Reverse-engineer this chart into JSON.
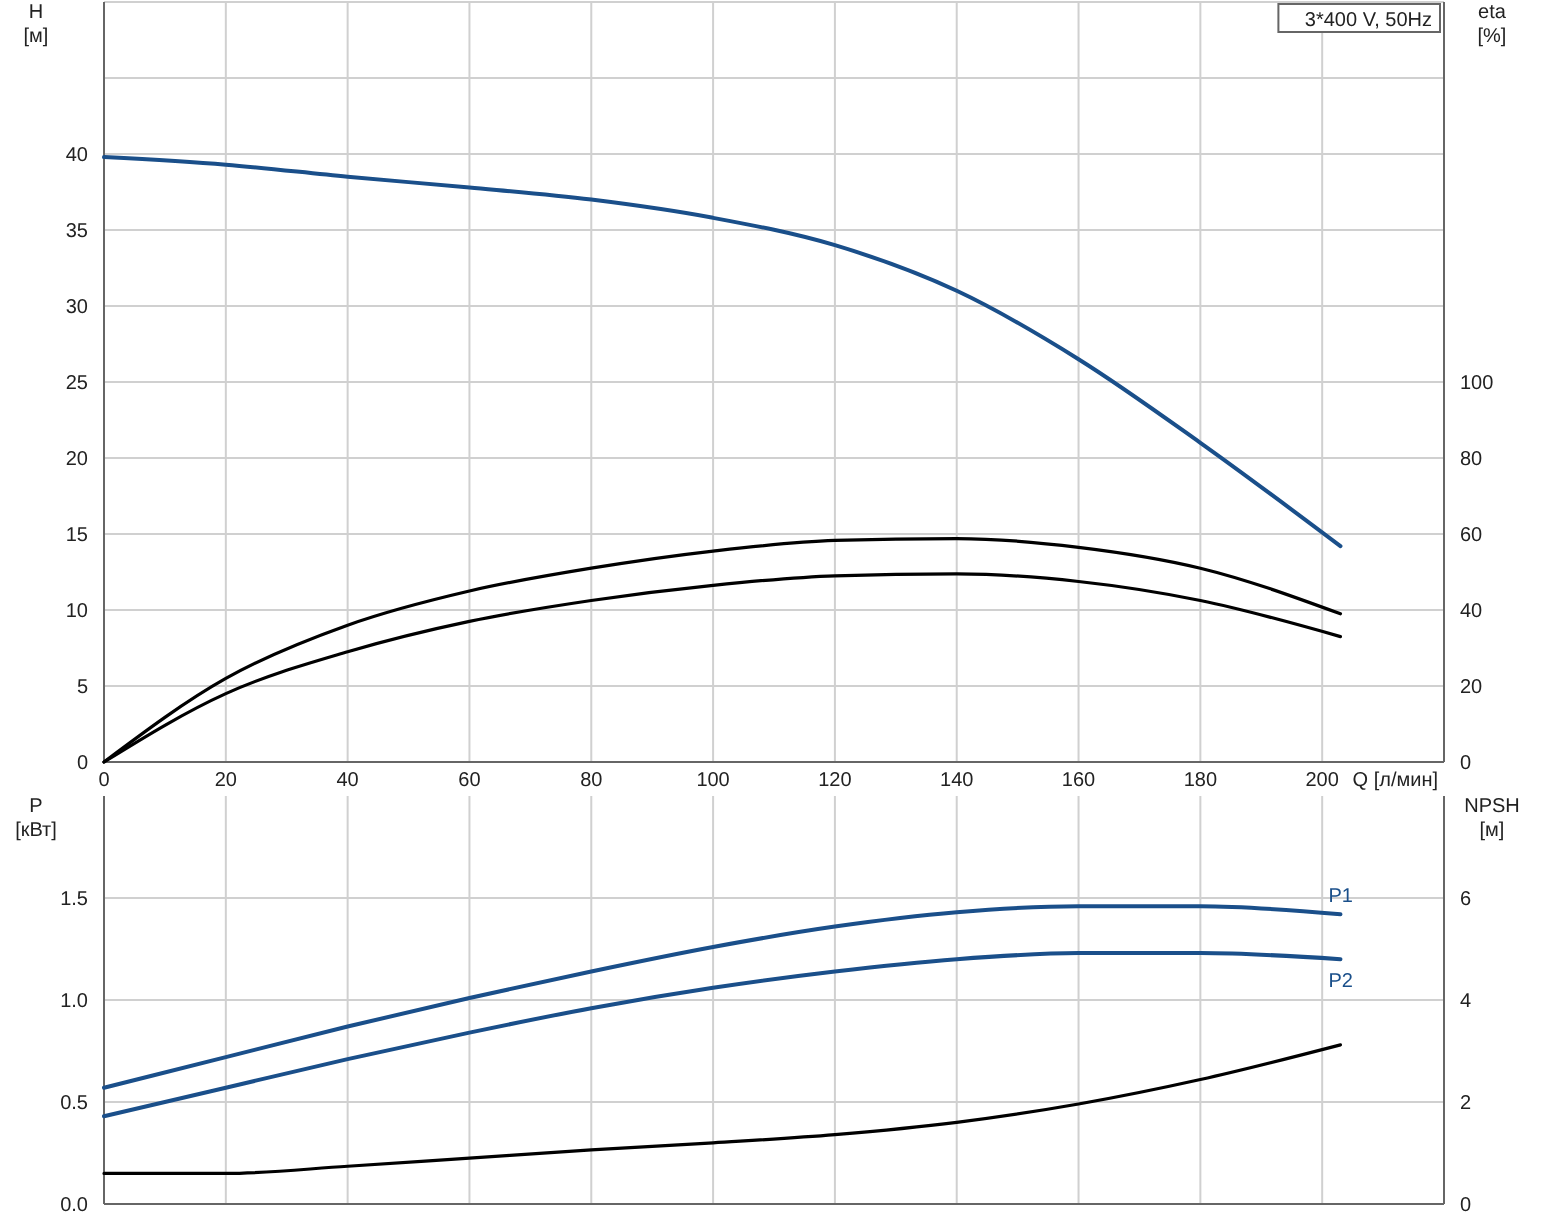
{
  "chart_data": [
    {
      "type": "line",
      "ylabel": "H\n[м]",
      "y2label": "eta\n[%]",
      "xlabel": "Q [л/мин]",
      "annotations": [
        "3*400 V, 50Hz"
      ],
      "grid": true,
      "xlim": [
        0,
        220
      ],
      "xticks": [
        0,
        20,
        40,
        60,
        80,
        100,
        120,
        140,
        160,
        180,
        200,
        {
          "value": 220,
          "label": null
        }
      ],
      "ylim": [
        0,
        50
      ],
      "yticks": [
        0,
        5,
        10,
        15,
        20,
        25,
        30,
        35,
        40,
        {
          "value": 45,
          "label": null
        },
        {
          "value": 50,
          "label": null
        }
      ],
      "y2lim": [
        0,
        200
      ],
      "y2ticks": [
        0,
        20,
        40,
        60,
        80,
        100
      ],
      "x": [
        0,
        20,
        40,
        60,
        80,
        100,
        120,
        140,
        160,
        180,
        203
      ],
      "series": [
        {
          "color": "#1a4f8a",
          "values": [
            39.8,
            39.3,
            38.5,
            37.8,
            37.0,
            35.8,
            34.0,
            31.0,
            26.5,
            21.0,
            14.2
          ]
        },
        {
          "color": "#000000",
          "axis": "y2",
          "values": [
            0,
            22,
            36,
            45,
            51,
            55.5,
            58.3,
            58.8,
            56.5,
            51,
            39
          ]
        },
        {
          "color": "#000000",
          "axis": "y2",
          "values": [
            0,
            18,
            29,
            37,
            42.5,
            46.5,
            49,
            49.5,
            47.5,
            42.5,
            33
          ]
        }
      ]
    },
    {
      "type": "line",
      "ylabel": "P\n[кВт]",
      "y2label": "NPSH\n[м]",
      "grid": true,
      "tick_labels": "y",
      "xlim": [
        0,
        220
      ],
      "xticks": [
        0,
        20,
        40,
        60,
        80,
        100,
        120,
        140,
        160,
        180,
        200,
        220
      ],
      "ylim": [
        0,
        2
      ],
      "yticks": [
        {
          "value": 0,
          "label": "0.0"
        },
        {
          "value": 0.5,
          "label": "0.5"
        },
        {
          "value": 1,
          "label": "1.0"
        },
        {
          "value": 1.5,
          "label": "1.5"
        }
      ],
      "y2lim": [
        0,
        8
      ],
      "y2ticks": [
        0,
        2,
        4,
        6
      ],
      "x": [
        0,
        20,
        40,
        60,
        80,
        100,
        120,
        140,
        160,
        180,
        203
      ],
      "series": [
        {
          "name": "P1",
          "color": "#1a4f8a",
          "values": [
            0.57,
            0.72,
            0.87,
            1.01,
            1.14,
            1.26,
            1.36,
            1.43,
            1.46,
            1.46,
            1.42
          ]
        },
        {
          "name": "P2",
          "color": "#1a4f8a",
          "values": [
            0.43,
            0.57,
            0.71,
            0.84,
            0.96,
            1.06,
            1.14,
            1.2,
            1.23,
            1.23,
            1.2
          ]
        },
        {
          "color": "#000000",
          "axis": "y2",
          "values": [
            0.6,
            0.6,
            0.74,
            0.9,
            1.06,
            1.2,
            1.36,
            1.6,
            1.96,
            2.44,
            3.12
          ]
        }
      ]
    }
  ]
}
